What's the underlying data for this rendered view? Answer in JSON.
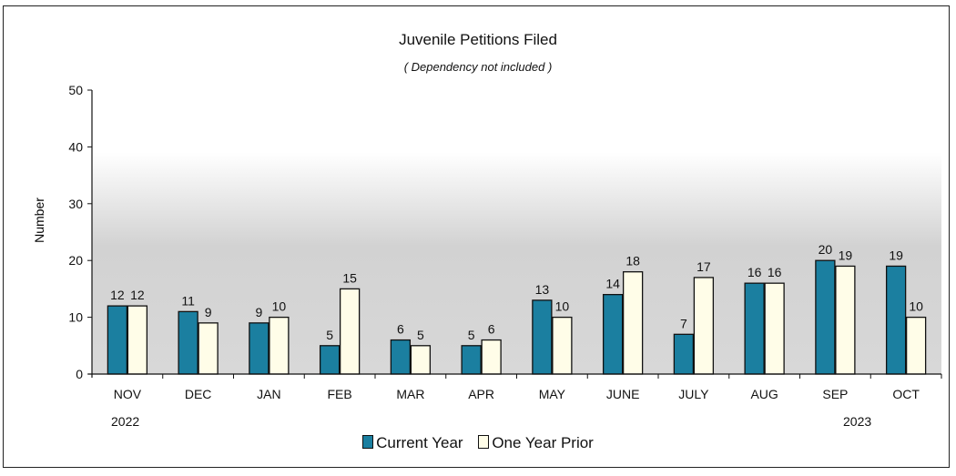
{
  "chart_data": {
    "type": "bar",
    "title": "Juvenile Petitions Filed",
    "subtitle": "( Dependency not included )",
    "ylabel": "Number",
    "xlabel": "",
    "ylim": [
      0,
      50
    ],
    "yticks": [
      0,
      10,
      20,
      30,
      40,
      50
    ],
    "categories": [
      "NOV",
      "DEC",
      "JAN",
      "FEB",
      "MAR",
      "APR",
      "MAY",
      "JUNE",
      "JULY",
      "AUG",
      "SEP",
      "OCT"
    ],
    "year_labels": {
      "start": "2022",
      "end": "2023"
    },
    "series": [
      {
        "name": "Current Year",
        "values": [
          12,
          11,
          9,
          5,
          6,
          5,
          13,
          14,
          7,
          16,
          20,
          19
        ],
        "color": "#1b7fa0"
      },
      {
        "name": "One Year Prior",
        "values": [
          12,
          9,
          10,
          15,
          5,
          6,
          10,
          18,
          17,
          16,
          19,
          10
        ],
        "color": "#fffde8"
      }
    ],
    "grid": false,
    "legend": "bottom-center"
  }
}
